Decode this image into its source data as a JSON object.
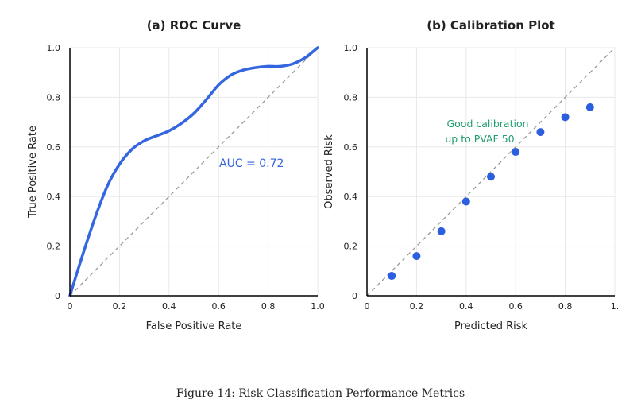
{
  "caption": "Figure 14: Risk Classification Performance Metrics",
  "colors": {
    "roc_line": "#3366e0",
    "calibration_points": "#2c5fe0",
    "annotation_green": "#1f9e6e",
    "reference_line": "#999999"
  },
  "chart_data": [
    {
      "type": "line",
      "title": "(a) ROC Curve",
      "xlabel": "False Positive Rate",
      "ylabel": "True Positive Rate",
      "xlim": [
        0,
        1
      ],
      "ylim": [
        0,
        1
      ],
      "xticks": [
        "0",
        "0.2",
        "0.4",
        "0.6",
        "0.8",
        "1.0"
      ],
      "yticks": [
        "0",
        "0.2",
        "0.4",
        "0.6",
        "0.8",
        "1.0"
      ],
      "grid": true,
      "annotation": "AUC = 0.72",
      "series": [
        {
          "x": [
            0,
            0.05,
            0.1,
            0.15,
            0.2,
            0.25,
            0.3,
            0.35,
            0.4,
            0.45,
            0.5,
            0.55,
            0.6,
            0.65,
            0.7,
            0.75,
            0.8,
            0.85,
            0.9,
            0.95,
            1.0
          ],
          "y": [
            0,
            0.16,
            0.31,
            0.44,
            0.53,
            0.59,
            0.625,
            0.645,
            0.665,
            0.695,
            0.735,
            0.79,
            0.85,
            0.89,
            0.91,
            0.92,
            0.925,
            0.925,
            0.935,
            0.96,
            1.0
          ]
        }
      ],
      "reference": {
        "x": [
          0,
          1
        ],
        "y": [
          0,
          1
        ],
        "style": "dashed"
      }
    },
    {
      "type": "scatter",
      "title": "(b) Calibration Plot",
      "xlabel": "Predicted Risk",
      "ylabel": "Observed Risk",
      "xlim": [
        0,
        1
      ],
      "ylim": [
        0,
        1
      ],
      "xticks": [
        "0",
        "0.2",
        "0.4",
        "0.6",
        "0.8",
        "1."
      ],
      "yticks": [
        "0",
        "0.2",
        "0.4",
        "0.6",
        "0.8",
        "1.0"
      ],
      "grid": true,
      "annotation_lines": [
        "Good calibration",
        "up to PVAF 50"
      ],
      "series": [
        {
          "x": [
            0.1,
            0.2,
            0.3,
            0.4,
            0.5,
            0.6,
            0.7,
            0.8,
            0.9
          ],
          "y": [
            0.08,
            0.16,
            0.26,
            0.38,
            0.48,
            0.58,
            0.66,
            0.72,
            0.76
          ]
        }
      ],
      "reference": {
        "x": [
          0,
          1
        ],
        "y": [
          0,
          1
        ],
        "style": "dashed"
      }
    }
  ]
}
